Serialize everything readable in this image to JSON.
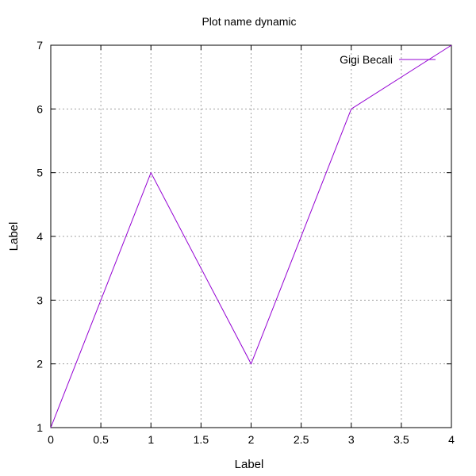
{
  "chart_data": {
    "type": "line",
    "title": "Plot name dynamic",
    "xlabel": "Label",
    "ylabel": "Label",
    "xlim": [
      0,
      4
    ],
    "ylim": [
      1,
      7
    ],
    "x_ticks": [
      0,
      0.5,
      1,
      1.5,
      2,
      2.5,
      3,
      3.5,
      4
    ],
    "x_tick_labels": [
      "0",
      "0.5",
      "1",
      "1.5",
      "2",
      "2.5",
      "3",
      "3.5",
      "4"
    ],
    "y_ticks": [
      1,
      2,
      3,
      4,
      5,
      6,
      7
    ],
    "y_tick_labels": [
      "1",
      "2",
      "3",
      "4",
      "5",
      "6",
      "7"
    ],
    "grid": true,
    "grid_style": "dotted",
    "legend_position": "top-right",
    "series": [
      {
        "name": "Gigi Becali",
        "color": "#9400d3",
        "x": [
          0,
          1,
          2,
          3,
          4
        ],
        "y": [
          1,
          5,
          2,
          6,
          7
        ]
      }
    ]
  }
}
